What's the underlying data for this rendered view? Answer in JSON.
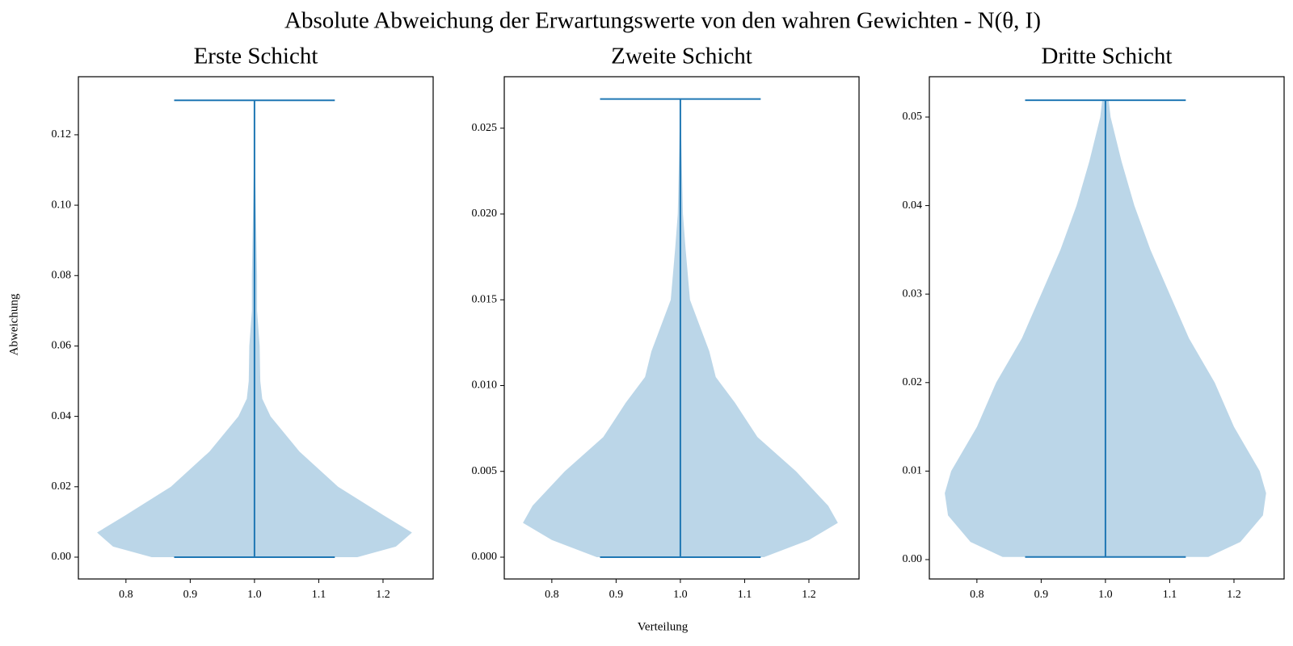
{
  "title": "Absolute Abweichung der Erwartungswerte von den wahren Gewichten - N(θ, I)",
  "xlabel": "Verteilung",
  "ylabel": "Abweichung",
  "chart_data": [
    {
      "type": "violin",
      "title": "Erste Schicht",
      "color": "#1f77b4",
      "position": 1,
      "min": 0,
      "max": 0.1298,
      "density_y": [
        0,
        0.003,
        0.007,
        0.012,
        0.02,
        0.03,
        0.04,
        0.045,
        0.05,
        0.06,
        0.07,
        0.08,
        0.09,
        0.1,
        0.11,
        0.1298
      ],
      "density_width": [
        0.16,
        0.22,
        0.245,
        0.2,
        0.13,
        0.07,
        0.025,
        0.012,
        0.009,
        0.008,
        0.004,
        0.004,
        0.003,
        0.002,
        0.001,
        0
      ],
      "xlim": [
        0.726,
        1.278
      ],
      "ylim": [
        -0.0062,
        0.1365
      ],
      "xticks": [
        0.8,
        0.9,
        {
          "value": 1,
          "label": "1.0"
        },
        1.1,
        1.2
      ],
      "yticks": [
        {
          "value": 0,
          "label": "0.00"
        },
        0.02,
        0.04,
        0.06,
        0.08,
        {
          "value": 0.1,
          "label": "0.10"
        },
        0.12
      ]
    },
    {
      "type": "violin",
      "title": "Zweite Schicht",
      "color": "#1f77b4",
      "position": 1,
      "min": 0,
      "max": 0.0267,
      "density_y": [
        0,
        0.001,
        0.002,
        0.003,
        0.005,
        0.007,
        0.009,
        0.0105,
        0.012,
        0.013,
        0.015,
        0.018,
        0.02,
        0.0267
      ],
      "density_width": [
        0.13,
        0.2,
        0.245,
        0.23,
        0.18,
        0.12,
        0.085,
        0.055,
        0.045,
        0.035,
        0.015,
        0.008,
        0.004,
        0
      ],
      "xlim": [
        0.726,
        1.278
      ],
      "ylim": [
        -0.00127,
        0.028
      ],
      "xticks": [
        0.8,
        0.9,
        {
          "value": 1,
          "label": "1.0"
        },
        1.1,
        1.2
      ],
      "yticks": [
        {
          "value": 0,
          "label": "0.000"
        },
        0.005,
        {
          "value": 0.01,
          "label": "0.010"
        },
        0.015,
        {
          "value": 0.02,
          "label": "0.020"
        },
        0.025
      ]
    },
    {
      "type": "violin",
      "title": "Dritte Schicht",
      "color": "#1f77b4",
      "position": 1,
      "min": 0.0003,
      "max": 0.0519,
      "density_y": [
        0.0003,
        0.002,
        0.005,
        0.0075,
        0.01,
        0.015,
        0.02,
        0.025,
        0.03,
        0.035,
        0.04,
        0.045,
        0.05,
        0.0519
      ],
      "density_width": [
        0.16,
        0.21,
        0.245,
        0.25,
        0.24,
        0.2,
        0.17,
        0.13,
        0.1,
        0.07,
        0.045,
        0.025,
        0.008,
        0.005
      ],
      "xlim": [
        0.726,
        1.278
      ],
      "ylim": [
        -0.00219,
        0.05456
      ],
      "xticks": [
        0.8,
        0.9,
        {
          "value": 1,
          "label": "1.0"
        },
        1.1,
        1.2
      ],
      "yticks": [
        {
          "value": 0,
          "label": "0.00"
        },
        0.01,
        0.02,
        0.03,
        0.04,
        0.05
      ]
    }
  ]
}
